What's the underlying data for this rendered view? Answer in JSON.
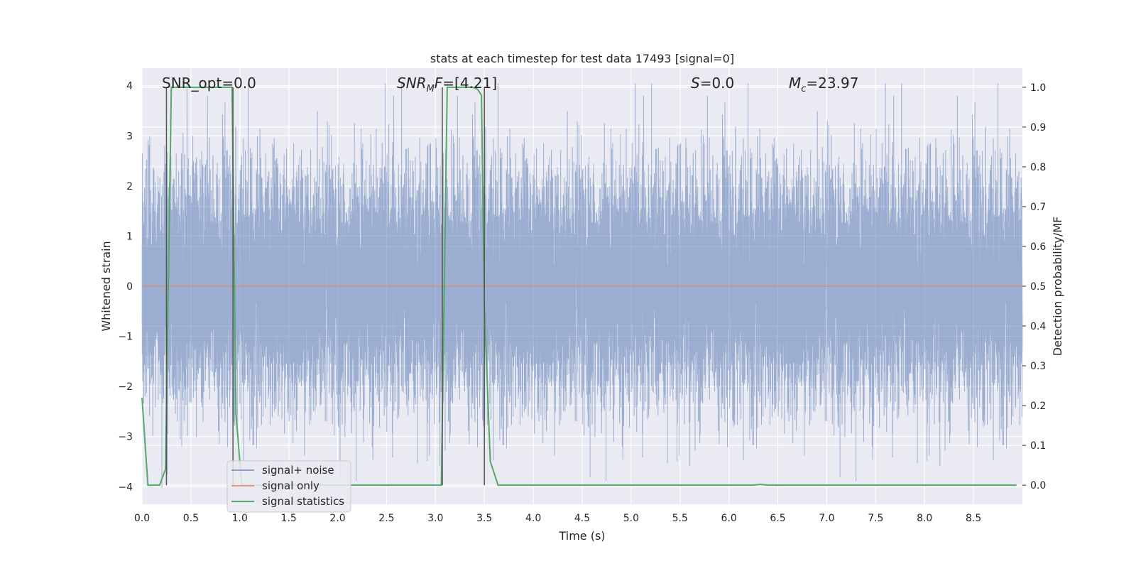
{
  "chart_data": {
    "type": "line",
    "title": "stats at each timestep for test data 17493 [signal=0]",
    "xlabel": "Time (s)",
    "ylabel": "Whitened strain",
    "y2label": "Detection probability/MF",
    "xlim": [
      0.0,
      9.0
    ],
    "ylim": [
      -4.35,
      4.35
    ],
    "y2lim": [
      -0.048,
      1.048
    ],
    "xticks": [
      "0.0",
      "0.5",
      "1.0",
      "1.5",
      "2.0",
      "2.5",
      "3.0",
      "3.5",
      "4.0",
      "4.5",
      "5.0",
      "5.5",
      "6.0",
      "6.5",
      "7.0",
      "7.5",
      "8.0",
      "8.5"
    ],
    "yticks": [
      "4",
      "3",
      "2",
      "1",
      "0",
      "−1",
      "−2",
      "−3",
      "−4"
    ],
    "y2ticks": [
      "1.0",
      "0.9",
      "0.8",
      "0.7",
      "0.6",
      "0.5",
      "0.4",
      "0.3",
      "0.2",
      "0.1",
      "0.0"
    ],
    "annotations": {
      "snr_opt": "SNR_opt=0.0",
      "snr_mf": "=[4.21]",
      "snr_mf_symbol": "SNR",
      "snr_mf_sub": "M",
      "snr_mf_tail": "F",
      "s": "=0.0",
      "s_symbol": "S",
      "mc": "=23.97",
      "mc_symbol": "M",
      "mc_sub": "c"
    },
    "legend": {
      "position": "lower-left",
      "entries": [
        "signal+ noise",
        "signal only",
        "signal statistics"
      ]
    },
    "series": [
      {
        "name": "signal+ noise",
        "axis": "left",
        "color": "#4c72b0",
        "kind": "noise",
        "duration": 9.0,
        "sample_rate": 2048,
        "amplitude_std": 1.15
      },
      {
        "name": "signal only",
        "axis": "left",
        "color": "#dd8452",
        "kind": "flat",
        "value": 0.0
      },
      {
        "name": "signal statistics",
        "axis": "right",
        "color": "#55a868",
        "x": [
          0.0,
          0.06,
          0.18,
          0.24,
          0.3,
          0.92,
          0.96,
          1.02,
          1.1,
          2.95,
          3.06,
          3.12,
          3.38,
          3.43,
          3.47,
          3.5,
          3.56,
          3.64,
          6.25,
          6.32,
          6.4,
          8.94
        ],
        "y": [
          0.22,
          0.0,
          0.0,
          0.04,
          1.0,
          1.0,
          0.18,
          0.0,
          0.0,
          0.0,
          0.0,
          1.0,
          1.0,
          0.995,
          0.98,
          0.45,
          0.06,
          0.0,
          0.0,
          0.002,
          0.0,
          0.0
        ]
      }
    ],
    "vlines": [
      0.25,
      0.93,
      3.07,
      3.5
    ]
  }
}
